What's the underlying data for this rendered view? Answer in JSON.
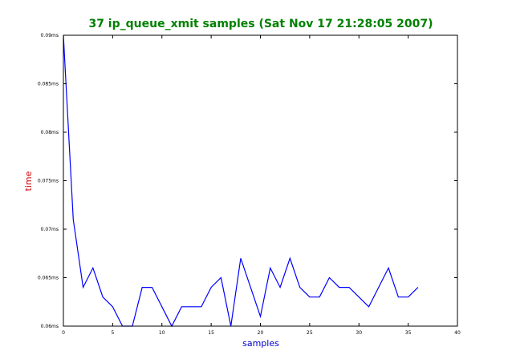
{
  "colors": {
    "title": "#008000",
    "xlabel": "#0000cc",
    "ylabel": "#cc0000",
    "series": "#0000ff",
    "axes": "#000000",
    "background": "#ffffff"
  },
  "chart_data": {
    "type": "line",
    "title": "37 ip_queue_xmit samples (Sat Nov 17 21:28:05 2007)",
    "xlabel": "samples",
    "ylabel": "time",
    "xlim": [
      0,
      40
    ],
    "ylim": [
      0.06,
      0.09
    ],
    "x_ticks": [
      0,
      5,
      10,
      15,
      20,
      25,
      30,
      35,
      40
    ],
    "x_tick_labels": [
      "0",
      "5",
      "10",
      "15",
      "20",
      "25",
      "30",
      "35",
      "40"
    ],
    "y_ticks": [
      0.06,
      0.065,
      0.07,
      0.075,
      0.08,
      0.085,
      0.09
    ],
    "y_tick_labels": [
      "0.06ms",
      "0.065ms",
      "0.07ms",
      "0.075ms",
      "0.08ms",
      "0.085ms",
      "0.09ms"
    ],
    "grid": false,
    "series": [
      {
        "x": [
          0,
          1,
          2,
          3,
          4,
          5,
          6,
          7,
          8,
          9,
          10,
          11,
          12,
          13,
          14,
          15,
          16,
          17,
          18,
          19,
          20,
          21,
          22,
          23,
          24,
          25,
          26,
          27,
          28,
          29,
          30,
          31,
          32,
          33,
          34,
          35,
          36
        ],
        "values": [
          0.09,
          0.071,
          0.064,
          0.066,
          0.063,
          0.062,
          0.06,
          0.06,
          0.064,
          0.064,
          0.062,
          0.06,
          0.062,
          0.062,
          0.062,
          0.064,
          0.065,
          0.06,
          0.067,
          0.064,
          0.061,
          0.066,
          0.064,
          0.067,
          0.064,
          0.063,
          0.063,
          0.065,
          0.064,
          0.064,
          0.063,
          0.062,
          0.064,
          0.066,
          0.063,
          0.063,
          0.064
        ]
      }
    ]
  }
}
